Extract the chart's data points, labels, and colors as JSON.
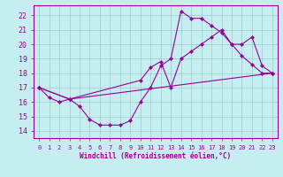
{
  "xlabel": "Windchill (Refroidissement éolien,°C)",
  "xlim": [
    -0.5,
    23.5
  ],
  "ylim": [
    13.5,
    22.7
  ],
  "xticks": [
    0,
    1,
    2,
    3,
    4,
    5,
    6,
    7,
    8,
    9,
    10,
    11,
    12,
    13,
    14,
    15,
    16,
    17,
    18,
    19,
    20,
    21,
    22,
    23
  ],
  "yticks": [
    14,
    15,
    16,
    17,
    18,
    19,
    20,
    21,
    22
  ],
  "bg_color": "#c6eef0",
  "line_color": "#990099",
  "grid_color": "#99cccc",
  "line1_x": [
    0,
    1,
    2,
    3,
    4,
    5,
    6,
    7,
    8,
    9,
    10,
    11,
    12,
    13,
    14,
    15,
    16,
    17,
    18,
    19,
    20,
    21,
    22,
    23
  ],
  "line1_y": [
    17.0,
    16.3,
    16.0,
    16.2,
    15.7,
    14.8,
    14.4,
    14.4,
    14.4,
    14.7,
    16.0,
    17.0,
    18.5,
    19.0,
    22.3,
    21.8,
    21.8,
    21.3,
    20.8,
    20.0,
    19.2,
    18.6,
    18.0,
    18.0
  ],
  "line2_x": [
    0,
    3,
    10,
    11,
    12,
    13,
    14,
    15,
    16,
    17,
    18,
    19,
    20,
    21,
    22,
    23
  ],
  "line2_y": [
    17.0,
    16.2,
    17.5,
    18.4,
    18.8,
    17.0,
    19.0,
    19.5,
    20.0,
    20.5,
    21.0,
    20.0,
    20.0,
    20.5,
    18.5,
    18.0
  ],
  "line3_x": [
    0,
    3,
    23
  ],
  "line3_y": [
    17.0,
    16.2,
    18.0
  ]
}
